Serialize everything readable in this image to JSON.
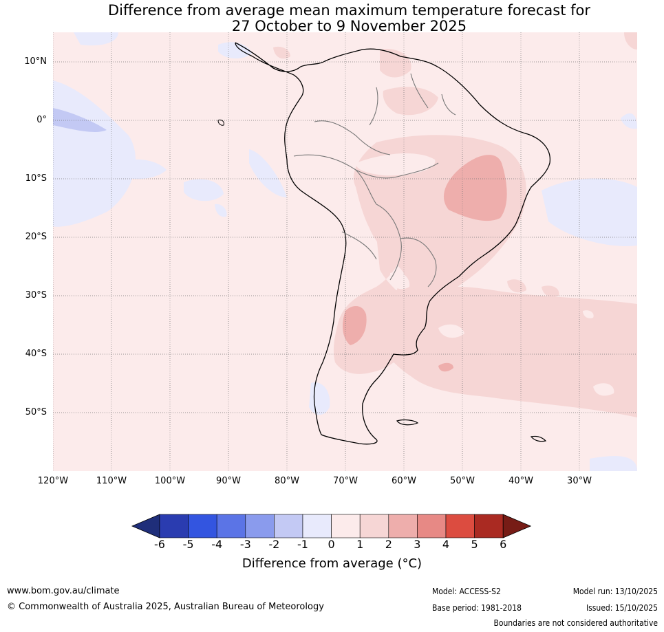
{
  "title": {
    "line1": "Difference from average mean maximum temperature forecast for",
    "line2": "27 October to 9 November 2025"
  },
  "map": {
    "lat_labels": [
      "10°N",
      "0°",
      "10°S",
      "20°S",
      "30°S",
      "40°S",
      "50°S"
    ],
    "lon_labels": [
      "120°W",
      "110°W",
      "100°W",
      "90°W",
      "80°W",
      "70°W",
      "60°W",
      "50°W",
      "40°W",
      "30°W"
    ]
  },
  "colorbar": {
    "ticks": [
      "-6",
      "-5",
      "-4",
      "-3",
      "-2",
      "-1",
      "0",
      "1",
      "2",
      "3",
      "4",
      "5",
      "6"
    ],
    "colors": [
      "#1f2e7a",
      "#2a3cb0",
      "#3355e0",
      "#5b74e6",
      "#8a9bed",
      "#c3c9f4",
      "#e8eafc",
      "#fcebeb",
      "#f6d6d5",
      "#eeaeac",
      "#e78985",
      "#dc4c40",
      "#aa2a22",
      "#771c16"
    ],
    "label": "Difference from average (°C)"
  },
  "footer": {
    "website": "www.bom.gov.au/climate",
    "copyright": "© Commonwealth of Australia 2025, Australian Bureau of Meteorology",
    "model": "Model: ACCESS-S2",
    "base_period": "Base period: 1981-2018",
    "model_run": "Model run: 13/10/2025",
    "issued": "Issued: 15/10/2025",
    "disclaimer": "Boundaries are not considered authoritative"
  },
  "colors": {
    "anomaly_0_1": "#fcebeb",
    "anomaly_1_2": "#f6d6d5",
    "anomaly_2_3": "#eeaeac",
    "anomaly_m1_0": "#e8eafc",
    "anomaly_m2_m1": "#c3c9f4"
  }
}
